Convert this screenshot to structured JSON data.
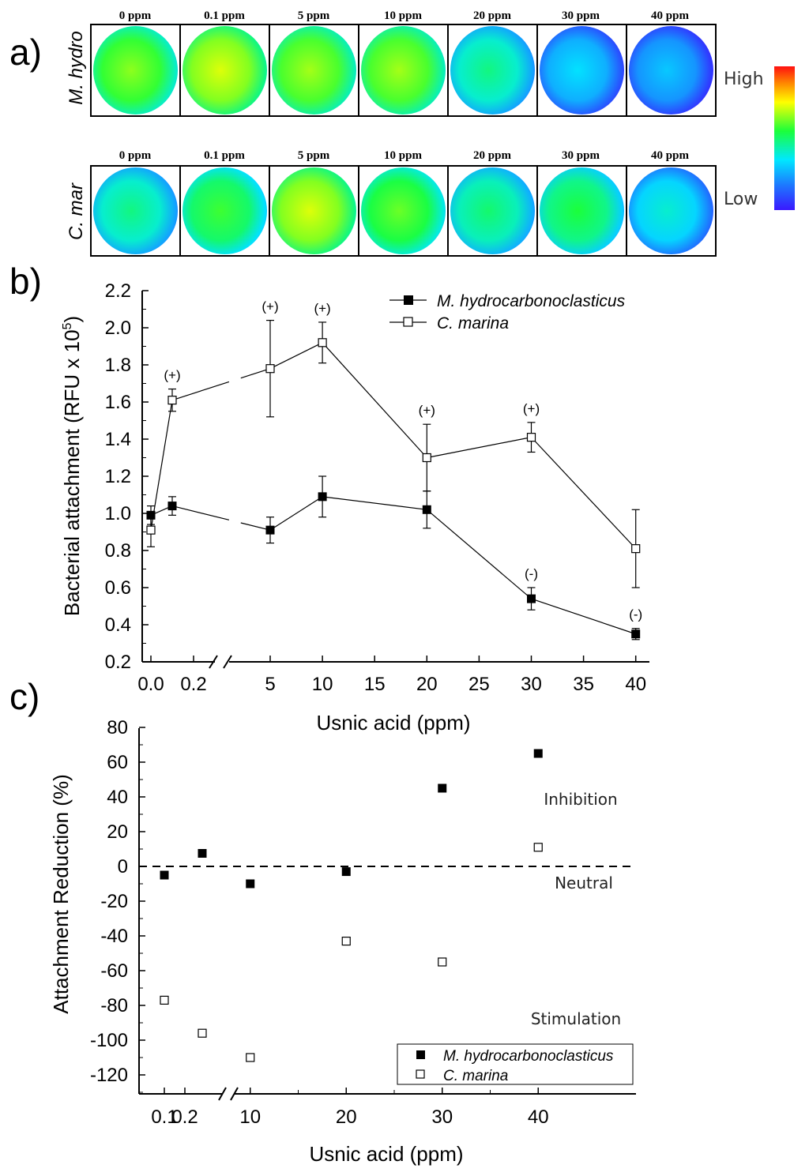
{
  "panel_labels": {
    "a": "a)",
    "b": "b)",
    "c": "c)"
  },
  "panel_a": {
    "concentrations": [
      "0 ppm",
      "0.1 ppm",
      "5 ppm",
      "10 ppm",
      "20 ppm",
      "30 ppm",
      "40 ppm"
    ],
    "rows": [
      {
        "label": "M. hydro",
        "levels": [
          0.55,
          0.62,
          0.57,
          0.57,
          0.38,
          0.24,
          0.2
        ]
      },
      {
        "label": "C. mar",
        "levels": [
          0.38,
          0.48,
          0.62,
          0.52,
          0.4,
          0.45,
          0.3
        ]
      }
    ],
    "colorbar": {
      "high_label": "High",
      "low_label": "Low"
    },
    "colors": {
      "high": "#ff0000",
      "low": "#2020ff"
    }
  },
  "chart_data": [
    {
      "type": "line",
      "panel": "b",
      "xlabel": "Usnic acid (ppm)",
      "ylabel": "Bacterial attachment (RFU x 10",
      "ylabel_sup": "5",
      "ylabel_close": ")",
      "x_ticks": [
        "0.0",
        "0.2",
        "5",
        "10",
        "15",
        "20",
        "25",
        "30",
        "35",
        "40"
      ],
      "y_ticks": [
        "0.2",
        "0.4",
        "0.6",
        "0.8",
        "1.0",
        "1.2",
        "1.4",
        "1.6",
        "1.8",
        "2.0",
        "2.2"
      ],
      "ylim": [
        0.2,
        2.2
      ],
      "axis_break": "between 0.2 and 5",
      "legend_position": "top-right",
      "series": [
        {
          "name": "M. hydrocarbonoclasticus",
          "marker": "filled-square",
          "x": [
            0,
            0.1,
            5,
            10,
            20,
            30,
            40
          ],
          "y": [
            0.99,
            1.04,
            0.91,
            1.09,
            1.02,
            0.54,
            0.35
          ],
          "err": [
            0.05,
            0.05,
            0.07,
            0.11,
            0.1,
            0.06,
            0.03
          ],
          "annotations": [
            "",
            "",
            "",
            "",
            "",
            "(-)",
            "(-)"
          ]
        },
        {
          "name": "C. marina",
          "marker": "open-square",
          "x": [
            0,
            0.1,
            5,
            10,
            20,
            30,
            40
          ],
          "y": [
            0.91,
            1.61,
            1.78,
            1.92,
            1.3,
            1.41,
            0.81
          ],
          "err": [
            0.09,
            0.06,
            0.26,
            0.11,
            0.18,
            0.08,
            0.21
          ],
          "annotations": [
            "",
            "(+)",
            "(+)",
            "(+)",
            "(+)",
            "(+)",
            ""
          ]
        }
      ]
    },
    {
      "type": "scatter",
      "panel": "c",
      "xlabel": "Usnic acid (ppm)",
      "ylabel": "Attachment Reduction (%)",
      "x_ticks": [
        "0.1",
        "0.2",
        "10",
        "20",
        "30",
        "40"
      ],
      "y_ticks": [
        "-120",
        "-100",
        "-80",
        "-60",
        "-40",
        "-20",
        "0",
        "20",
        "40",
        "60",
        "80"
      ],
      "ylim": [
        -130,
        80
      ],
      "axis_break": "between 0.2 and 10",
      "reference_line": 0,
      "region_labels": [
        "Inhibition",
        "Neutral",
        "Stimulation"
      ],
      "legend_position": "bottom-right",
      "series": [
        {
          "name": "M. hydrocarbonoclasticus",
          "marker": "filled-square",
          "x": [
            0.1,
            5,
            10,
            20,
            30,
            40
          ],
          "y": [
            -5,
            7.5,
            -10,
            -3,
            45,
            65
          ]
        },
        {
          "name": "C. marina",
          "marker": "open-square",
          "x": [
            0.1,
            5,
            10,
            20,
            30,
            40
          ],
          "y": [
            -77,
            -96,
            -110,
            -43,
            -55,
            11
          ]
        }
      ]
    }
  ]
}
